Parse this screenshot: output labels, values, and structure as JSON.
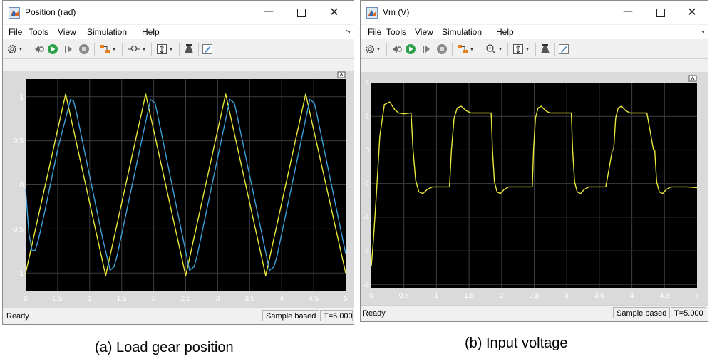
{
  "windows": [
    {
      "title": "Position (rad)",
      "menu": [
        "File",
        "Tools",
        "View",
        "Simulation",
        "Help"
      ],
      "status": {
        "ready": "Ready",
        "mode": "Sample based",
        "time": "T=5.000"
      },
      "caption": "(a) Load gear position",
      "chart_data": {
        "type": "line",
        "title": "",
        "xlabel": "",
        "ylabel": "",
        "xlim": [
          0,
          5
        ],
        "ylim": [
          -1.2,
          1.2
        ],
        "x_ticks": [
          "0",
          "0.5",
          "1",
          "1.5",
          "2",
          "2.5",
          "3",
          "3.5",
          "4",
          "4.5",
          "5"
        ],
        "y_ticks": [
          "1",
          "0.5",
          "0",
          "-0.5",
          "-1"
        ],
        "grid": true,
        "background": "#000000",
        "series": [
          {
            "color": "#e8e83a",
            "x": [
              0,
              0.625,
              1.25,
              1.875,
              2.5,
              3.125,
              3.75,
              4.375,
              5
            ],
            "y": [
              -1,
              1.03,
              -1.03,
              1.03,
              -1.03,
              1.03,
              -1.03,
              1.03,
              -1
            ]
          },
          {
            "color": "#3b9fd8",
            "x": [
              0,
              0.05,
              0.1,
              0.15,
              0.2,
              0.3,
              0.5,
              0.7,
              0.75,
              0.8,
              1.2,
              1.32,
              1.38,
              1.43,
              1.95,
              2.02,
              2.06,
              2.56,
              2.63,
              2.68,
              3.19,
              3.26,
              3.3,
              3.81,
              3.88,
              3.93,
              4.44,
              4.51,
              4.55,
              5
            ],
            "y": [
              -0.05,
              -0.55,
              -0.75,
              -0.74,
              -0.62,
              -0.3,
              0.4,
              0.97,
              0.95,
              0.8,
              -0.6,
              -0.97,
              -0.93,
              -0.8,
              0.97,
              0.93,
              0.8,
              -0.97,
              -0.93,
              -0.8,
              0.97,
              0.93,
              0.8,
              -0.97,
              -0.93,
              -0.8,
              0.97,
              0.93,
              0.8,
              -0.78
            ]
          }
        ]
      }
    },
    {
      "title": "Vm (V)",
      "menu": [
        "File",
        "Tools",
        "View",
        "Simulation",
        "Help"
      ],
      "status": {
        "ready": "Ready",
        "mode": "Sample based",
        "time": "T=5.000"
      },
      "caption": "(b) Input voltage",
      "chart_data": {
        "type": "line",
        "title": "",
        "xlabel": "",
        "ylabel": "",
        "xlim": [
          0,
          5
        ],
        "ylim": [
          -8.2,
          4
        ],
        "x_ticks": [
          "0",
          "0.5",
          "1",
          "1.5",
          "2",
          "2.5",
          "3",
          "3.5",
          "4",
          "4.5",
          "5"
        ],
        "y_ticks": [
          "4",
          "2",
          "0",
          "-2",
          "-4",
          "-6",
          "-8"
        ],
        "grid": true,
        "background": "#000000",
        "series": [
          {
            "color": "#e8e83a",
            "x": [
              0,
              0.03,
              0.08,
              0.13,
              0.2,
              0.28,
              0.36,
              0.42,
              0.5,
              0.6,
              0.61,
              0.64,
              0.68,
              0.73,
              0.79,
              0.86,
              0.94,
              1.02,
              1.1,
              1.18,
              1.2,
              1.23,
              1.27,
              1.32,
              1.38,
              1.45,
              1.53,
              1.6,
              1.7,
              1.8,
              1.84,
              1.86,
              1.89,
              1.93,
              1.98,
              2.04,
              2.11,
              2.19,
              2.27,
              2.35,
              2.43,
              2.47,
              2.49,
              2.52,
              2.56,
              2.61,
              2.67,
              2.74,
              2.82,
              2.9,
              3.0,
              3.07,
              3.09,
              3.12,
              3.16,
              3.21,
              3.27,
              3.34,
              3.42,
              3.5,
              3.6,
              3.7,
              3.72,
              3.75,
              3.79,
              3.84,
              3.9,
              3.97,
              4.05,
              4.13,
              4.23,
              4.33,
              4.35,
              4.38,
              4.42,
              4.47,
              4.53,
              4.6,
              4.68,
              4.76,
              4.86,
              5
            ],
            "y": [
              -6.9,
              -5.5,
              -2.5,
              0.8,
              2.7,
              2.85,
              2.4,
              2.2,
              2.15,
              2.2,
              2.2,
              0,
              -1.8,
              -2.5,
              -2.6,
              -2.35,
              -2.2,
              -2.2,
              -2.2,
              -2.2,
              -2.2,
              0,
              1.9,
              2.5,
              2.6,
              2.35,
              2.2,
              2.2,
              2.2,
              2.2,
              2.2,
              0,
              -1.9,
              -2.5,
              -2.6,
              -2.35,
              -2.2,
              -2.2,
              -2.2,
              -2.2,
              -2.2,
              -2.2,
              0,
              1.9,
              2.5,
              2.6,
              2.35,
              2.2,
              2.2,
              2.2,
              2.2,
              2.2,
              0,
              -1.9,
              -2.5,
              -2.6,
              -2.35,
              -2.2,
              -2.2,
              -2.2,
              -2.2,
              0,
              0,
              1.9,
              2.5,
              2.6,
              2.35,
              2.2,
              2.2,
              2.2,
              2.2,
              0,
              0,
              -1.9,
              -2.5,
              -2.6,
              -2.35,
              -2.2,
              -2.2,
              -2.2,
              -2.2,
              -2.25
            ]
          }
        ]
      }
    }
  ]
}
